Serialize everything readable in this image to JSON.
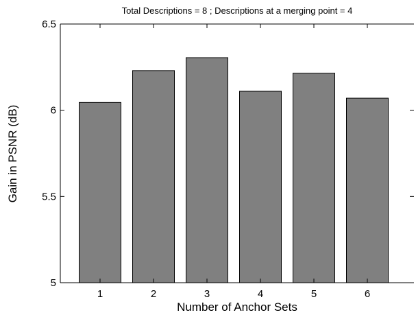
{
  "chart_data": {
    "type": "bar",
    "title": "Total Descriptions = 8 ; Descriptions at a merging point = 4",
    "xlabel": "Number of Anchor Sets",
    "ylabel": "Gain in PSNR (dB)",
    "categories": [
      "1",
      "2",
      "3",
      "4",
      "5",
      "6"
    ],
    "values": [
      6.045,
      6.23,
      6.305,
      6.11,
      6.215,
      6.07
    ],
    "ylim": [
      5,
      6.5
    ],
    "yticks": [
      5,
      5.5,
      6,
      6.5
    ],
    "ytick_labels": [
      "5",
      "5.5",
      "6",
      "6.5"
    ],
    "grid": false,
    "legend": "none",
    "bar_color": "#808080",
    "edge_color": "#000000"
  }
}
